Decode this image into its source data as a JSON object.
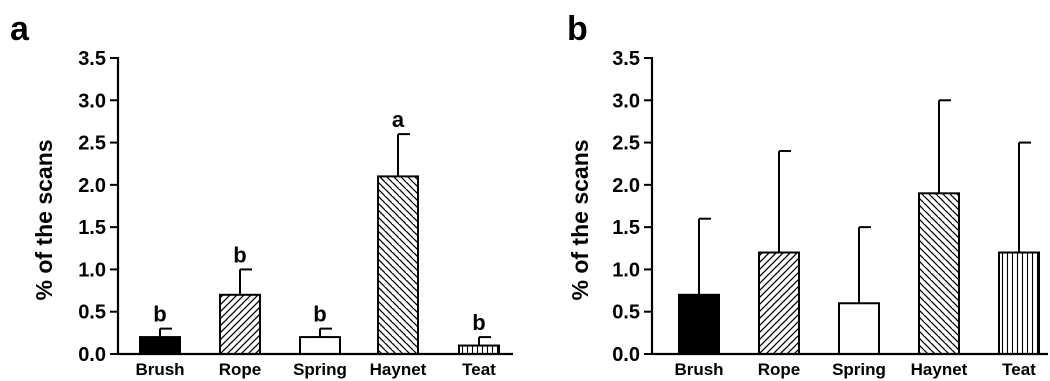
{
  "chart_data": [
    {
      "type": "bar",
      "panel_label": "a",
      "ylabel": "% of the scans",
      "ylim": [
        0,
        3.5
      ],
      "yticks": [
        "0.0",
        "0.5",
        "1.0",
        "1.5",
        "2.0",
        "2.5",
        "3.0",
        "3.5"
      ],
      "categories": [
        "Brush",
        "Rope",
        "Spring",
        "Haynet",
        "Teat"
      ],
      "values": [
        0.2,
        0.7,
        0.2,
        2.1,
        0.1
      ],
      "error_upper": [
        0.3,
        1.0,
        0.3,
        2.6,
        0.2
      ],
      "significance_letters": [
        "b",
        "b",
        "b",
        "a",
        "b"
      ],
      "fills": [
        "solid-black",
        "diagonal-up",
        "white",
        "diagonal-down",
        "vertical"
      ]
    },
    {
      "type": "bar",
      "panel_label": "b",
      "ylabel": "% of the scans",
      "ylim": [
        0,
        3.5
      ],
      "yticks": [
        "0.0",
        "0.5",
        "1.0",
        "1.5",
        "2.0",
        "2.5",
        "3.0",
        "3.5"
      ],
      "categories": [
        "Brush",
        "Rope",
        "Spring",
        "Haynet",
        "Teat"
      ],
      "values": [
        0.7,
        1.2,
        0.6,
        1.9,
        1.2
      ],
      "error_upper": [
        1.6,
        2.4,
        1.5,
        3.0,
        2.5
      ],
      "fills": [
        "solid-black",
        "diagonal-up",
        "white",
        "diagonal-down",
        "vertical"
      ]
    }
  ]
}
